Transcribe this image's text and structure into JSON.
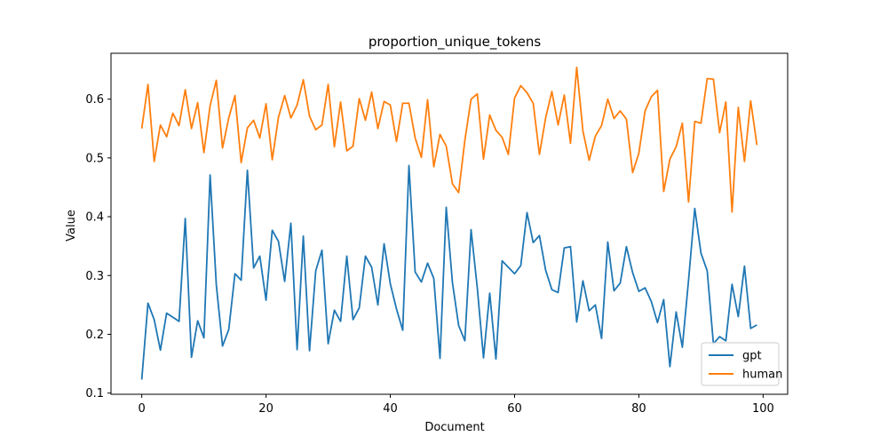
{
  "chart_data": {
    "type": "line",
    "title": "proportion_unique_tokens",
    "xlabel": "Document",
    "ylabel": "Value",
    "xlim": [
      -4.95,
      103.95
    ],
    "ylim": [
      0.098,
      0.678
    ],
    "xticks": [
      0,
      20,
      40,
      60,
      80,
      100
    ],
    "yticks": [
      0.1,
      0.2,
      0.3,
      0.4,
      0.5,
      0.6
    ],
    "grid": false,
    "legend_position": "lower-right",
    "series": [
      {
        "name": "gpt",
        "color": "#1f77b4",
        "values": [
          0.123,
          0.253,
          0.225,
          0.173,
          0.236,
          0.229,
          0.222,
          0.397,
          0.161,
          0.223,
          0.194,
          0.471,
          0.284,
          0.18,
          0.208,
          0.303,
          0.292,
          0.479,
          0.313,
          0.333,
          0.258,
          0.377,
          0.358,
          0.29,
          0.389,
          0.174,
          0.367,
          0.172,
          0.308,
          0.343,
          0.184,
          0.241,
          0.222,
          0.333,
          0.225,
          0.245,
          0.333,
          0.314,
          0.25,
          0.354,
          0.286,
          0.243,
          0.207,
          0.487,
          0.306,
          0.289,
          0.321,
          0.295,
          0.159,
          0.416,
          0.288,
          0.215,
          0.189,
          0.378,
          0.279,
          0.16,
          0.27,
          0.158,
          0.325,
          0.314,
          0.303,
          0.317,
          0.407,
          0.356,
          0.368,
          0.309,
          0.276,
          0.271,
          0.347,
          0.349,
          0.221,
          0.291,
          0.24,
          0.25,
          0.193,
          0.357,
          0.274,
          0.287,
          0.349,
          0.305,
          0.273,
          0.279,
          0.256,
          0.22,
          0.259,
          0.145,
          0.238,
          0.178,
          0.292,
          0.414,
          0.338,
          0.308,
          0.184,
          0.196,
          0.189,
          0.285,
          0.23,
          0.316,
          0.21,
          0.216
        ]
      },
      {
        "name": "human",
        "color": "#ff7f0e",
        "values": [
          0.55,
          0.625,
          0.494,
          0.556,
          0.536,
          0.576,
          0.555,
          0.616,
          0.55,
          0.594,
          0.509,
          0.589,
          0.632,
          0.517,
          0.568,
          0.606,
          0.492,
          0.551,
          0.564,
          0.534,
          0.592,
          0.497,
          0.569,
          0.606,
          0.568,
          0.59,
          0.633,
          0.571,
          0.548,
          0.556,
          0.625,
          0.519,
          0.595,
          0.512,
          0.52,
          0.601,
          0.564,
          0.612,
          0.55,
          0.596,
          0.59,
          0.528,
          0.593,
          0.593,
          0.534,
          0.501,
          0.599,
          0.485,
          0.54,
          0.52,
          0.456,
          0.441,
          0.53,
          0.6,
          0.609,
          0.498,
          0.573,
          0.547,
          0.535,
          0.506,
          0.602,
          0.623,
          0.611,
          0.593,
          0.506,
          0.568,
          0.613,
          0.556,
          0.607,
          0.525,
          0.654,
          0.546,
          0.496,
          0.537,
          0.555,
          0.6,
          0.567,
          0.58,
          0.566,
          0.475,
          0.508,
          0.58,
          0.604,
          0.615,
          0.443,
          0.498,
          0.519,
          0.559,
          0.425,
          0.562,
          0.559,
          0.635,
          0.634,
          0.543,
          0.595,
          0.408,
          0.586,
          0.494,
          0.597,
          0.522
        ]
      }
    ]
  }
}
